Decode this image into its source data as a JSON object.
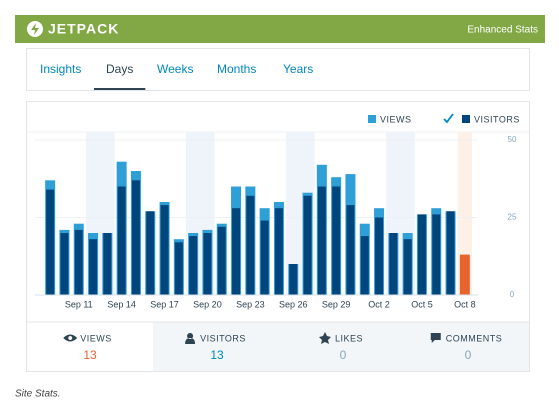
{
  "header": {
    "brand": "JETPACK",
    "right": "Enhanced Stats"
  },
  "tabs": [
    "Insights",
    "Days",
    "Weeks",
    "Months",
    "Years"
  ],
  "selected_tab": "Days",
  "chart_data": {
    "type": "bar",
    "categories": [
      null,
      null,
      "Sep 11",
      null,
      null,
      "Sep 14",
      null,
      null,
      "Sep 17",
      null,
      null,
      "Sep 20",
      null,
      null,
      "Sep 23",
      null,
      null,
      "Sep 26",
      null,
      null,
      "Sep 29",
      null,
      null,
      "Oct 2",
      null,
      null,
      "Oct 5",
      null,
      null,
      "Oct 8"
    ],
    "series": [
      {
        "name": "VIEWS",
        "color": "#2f9fd8",
        "values": [
          37,
          21,
          23,
          20,
          20,
          43,
          40,
          27,
          30,
          18,
          20,
          21,
          23,
          35,
          35,
          28,
          30,
          10,
          33,
          42,
          38,
          39,
          23,
          28,
          20,
          20,
          26,
          28,
          27,
          13
        ]
      },
      {
        "name": "VISITORS",
        "color": "#00457c",
        "values": [
          34,
          20,
          21,
          18,
          20,
          35,
          37,
          27,
          29,
          17,
          19,
          20,
          22,
          28,
          32,
          24,
          28,
          10,
          32,
          35,
          35,
          29,
          19,
          25,
          20,
          18,
          26,
          26,
          27,
          13
        ]
      }
    ],
    "highlight_color": "#e8642e",
    "ylim": [
      0,
      50
    ],
    "yticks": [
      0,
      25,
      50
    ],
    "grid": true
  },
  "summary": [
    {
      "label": "VIEWS",
      "value": "13"
    },
    {
      "label": "VISITORS",
      "value": "13"
    },
    {
      "label": "LIKES",
      "value": "0"
    },
    {
      "label": "COMMENTS",
      "value": "0"
    }
  ],
  "caption": "Site Stats."
}
